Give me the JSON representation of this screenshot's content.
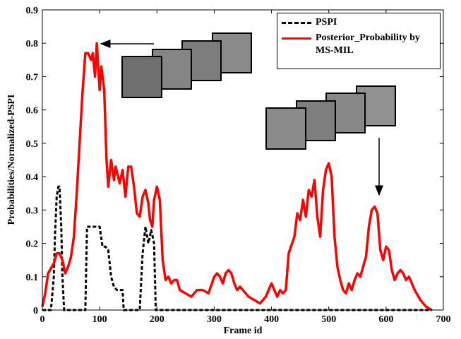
{
  "chart_data": {
    "type": "line",
    "xlabel": "Frame  id",
    "ylabel": "Probabilities/Normalized-PSPI",
    "xlim": [
      0,
      700
    ],
    "ylim": [
      0,
      0.9
    ],
    "xticks": [
      0,
      100,
      200,
      300,
      400,
      500,
      600,
      700
    ],
    "yticks": [
      0,
      0.1,
      0.2,
      0.3,
      0.4,
      0.5,
      0.6,
      0.7,
      0.8,
      0.9
    ],
    "legend": "upper right",
    "series": [
      {
        "name": "PSPI",
        "color": "#000000",
        "style": "dashed",
        "x": [
          0,
          15,
          20,
          22,
          25,
          28,
          30,
          33,
          35,
          38,
          75,
          78,
          100,
          105,
          110,
          115,
          120,
          125,
          130,
          140,
          142,
          170,
          175,
          180,
          185,
          190,
          195,
          198,
          680
        ],
        "values": [
          0,
          0,
          0.1,
          0.22,
          0.34,
          0.37,
          0.37,
          0.25,
          0.1,
          0,
          0,
          0.25,
          0.25,
          0.19,
          0.19,
          0.18,
          0.1,
          0.07,
          0.06,
          0.06,
          0,
          0,
          0.17,
          0.25,
          0.2,
          0.24,
          0.2,
          0,
          0
        ]
      },
      {
        "name": "Posterior_Probability by MS-MIL",
        "color": "#ff0000",
        "style": "solid",
        "x": [
          0,
          5,
          10,
          20,
          25,
          30,
          35,
          40,
          45,
          50,
          55,
          60,
          65,
          70,
          75,
          80,
          85,
          88,
          92,
          95,
          100,
          103,
          108,
          112,
          115,
          120,
          125,
          128,
          135,
          140,
          145,
          150,
          155,
          160,
          165,
          170,
          175,
          180,
          185,
          188,
          192,
          195,
          200,
          205,
          210,
          215,
          220,
          225,
          230,
          235,
          240,
          250,
          260,
          270,
          280,
          290,
          300,
          305,
          310,
          315,
          320,
          325,
          330,
          335,
          340,
          345,
          350,
          360,
          370,
          380,
          390,
          400,
          405,
          410,
          415,
          420,
          425,
          430,
          440,
          445,
          450,
          455,
          460,
          465,
          470,
          475,
          480,
          485,
          490,
          495,
          500,
          505,
          510,
          515,
          520,
          525,
          530,
          535,
          540,
          545,
          550,
          555,
          560,
          565,
          570,
          575,
          580,
          585,
          590,
          595,
          600,
          605,
          610,
          615,
          620,
          625,
          630,
          635,
          640,
          650,
          660,
          670,
          680
        ],
        "values": [
          0.01,
          0.05,
          0.11,
          0.14,
          0.17,
          0.17,
          0.15,
          0.11,
          0.13,
          0.16,
          0.22,
          0.35,
          0.5,
          0.65,
          0.77,
          0.77,
          0.75,
          0.77,
          0.7,
          0.8,
          0.66,
          0.73,
          0.66,
          0.45,
          0.37,
          0.45,
          0.39,
          0.43,
          0.38,
          0.42,
          0.34,
          0.43,
          0.43,
          0.37,
          0.29,
          0.28,
          0.34,
          0.36,
          0.32,
          0.27,
          0.25,
          0.33,
          0.37,
          0.33,
          0.15,
          0.09,
          0.1,
          0.08,
          0.09,
          0.09,
          0.06,
          0.05,
          0.04,
          0.06,
          0.06,
          0.05,
          0.1,
          0.11,
          0.1,
          0.08,
          0.11,
          0.12,
          0.11,
          0.08,
          0.06,
          0.07,
          0.06,
          0.04,
          0.03,
          0.02,
          0.04,
          0.08,
          0.06,
          0.04,
          0.06,
          0.05,
          0.06,
          0.17,
          0.22,
          0.29,
          0.27,
          0.33,
          0.28,
          0.36,
          0.34,
          0.39,
          0.28,
          0.22,
          0.36,
          0.42,
          0.44,
          0.4,
          0.22,
          0.13,
          0.09,
          0.06,
          0.05,
          0.08,
          0.06,
          0.09,
          0.11,
          0.1,
          0.13,
          0.16,
          0.25,
          0.3,
          0.31,
          0.29,
          0.18,
          0.15,
          0.19,
          0.18,
          0.12,
          0.09,
          0.11,
          0.12,
          0.11,
          0.09,
          0.1,
          0.06,
          0.03,
          0.01,
          0
        ]
      }
    ]
  }
}
